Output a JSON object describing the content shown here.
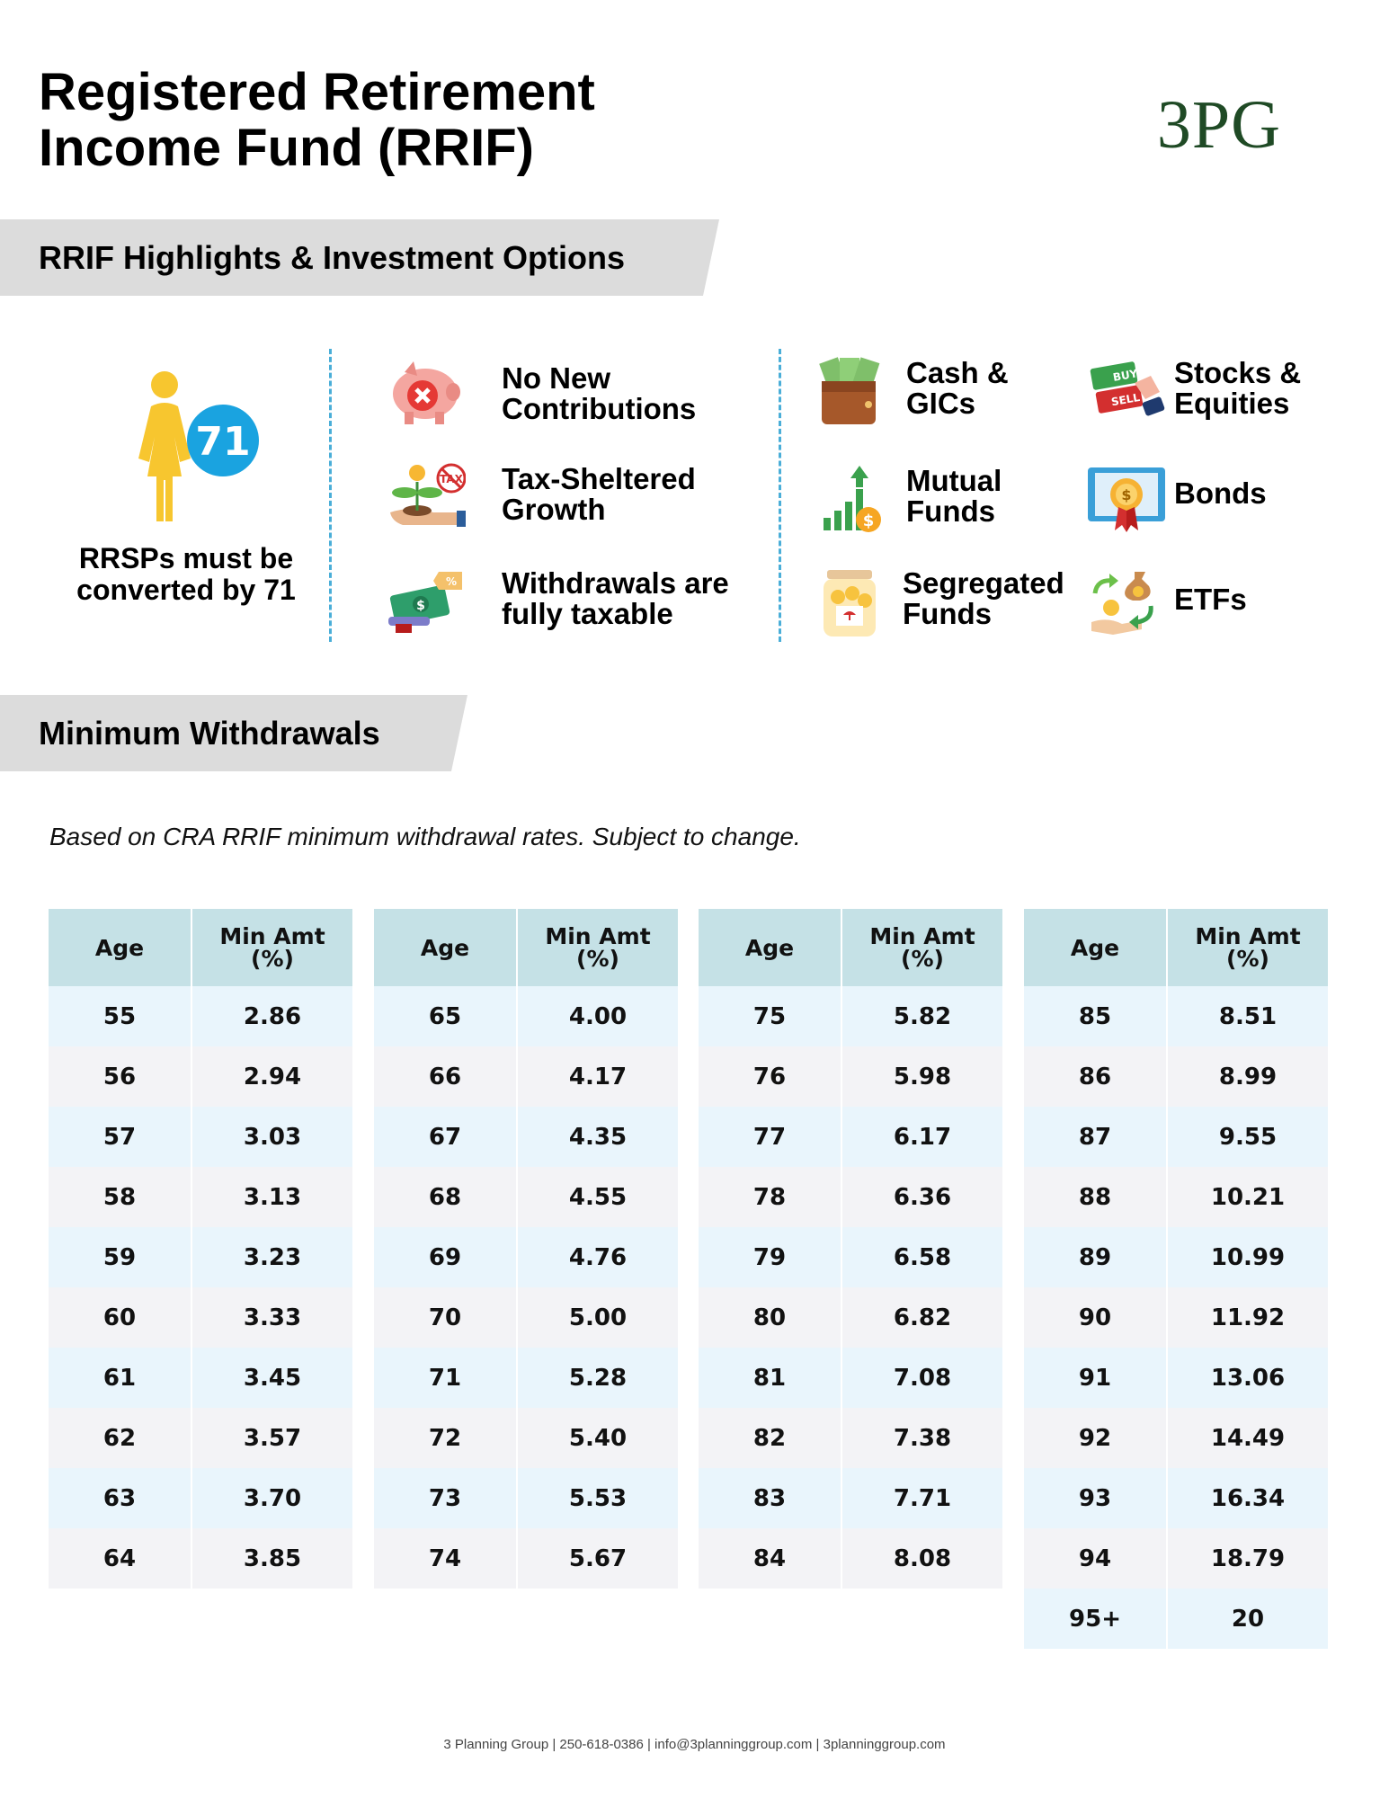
{
  "header": {
    "title_line1": "Registered Retirement",
    "title_line2": "Income Fund (RRIF)",
    "logo_text": "3PG"
  },
  "section1": {
    "title": "RRIF Highlights & Investment Options",
    "age_badge": "71",
    "convert_line1": "RRSPs must be",
    "convert_line2": "converted by 71",
    "highlights": [
      {
        "line1": "No New",
        "line2": "Contributions",
        "icon": "piggy-bank-no-icon"
      },
      {
        "line1": "Tax-Sheltered",
        "line2": "Growth",
        "icon": "plant-no-tax-icon"
      },
      {
        "line1": "Withdrawals are",
        "line2": "fully taxable",
        "icon": "cash-tax-icon"
      }
    ],
    "options": [
      {
        "line1": "Cash &",
        "line2": "GICs",
        "icon": "wallet-cash-icon"
      },
      {
        "line1": "Mutual",
        "line2": "Funds",
        "icon": "growth-chart-icon"
      },
      {
        "line1": "Segregated",
        "line2": "Funds",
        "icon": "coin-jar-icon"
      },
      {
        "line1": "Stocks &",
        "line2": "Equities",
        "icon": "buy-sell-icon"
      },
      {
        "line1": "Bonds",
        "line2": "",
        "icon": "bond-certificate-icon"
      },
      {
        "line1": "ETFs",
        "line2": "",
        "icon": "money-exchange-icon"
      }
    ]
  },
  "section2": {
    "title": "Minimum Withdrawals",
    "note": "Based on CRA RRIF minimum withdrawal rates. Subject to change.",
    "col_age": "Age",
    "col_min_line1": "Min Amt",
    "col_min_line2": "(%)",
    "tables": [
      [
        [
          "55",
          "2.86"
        ],
        [
          "56",
          "2.94"
        ],
        [
          "57",
          "3.03"
        ],
        [
          "58",
          "3.13"
        ],
        [
          "59",
          "3.23"
        ],
        [
          "60",
          "3.33"
        ],
        [
          "61",
          "3.45"
        ],
        [
          "62",
          "3.57"
        ],
        [
          "63",
          "3.70"
        ],
        [
          "64",
          "3.85"
        ]
      ],
      [
        [
          "65",
          "4.00"
        ],
        [
          "66",
          "4.17"
        ],
        [
          "67",
          "4.35"
        ],
        [
          "68",
          "4.55"
        ],
        [
          "69",
          "4.76"
        ],
        [
          "70",
          "5.00"
        ],
        [
          "71",
          "5.28"
        ],
        [
          "72",
          "5.40"
        ],
        [
          "73",
          "5.53"
        ],
        [
          "74",
          "5.67"
        ]
      ],
      [
        [
          "75",
          "5.82"
        ],
        [
          "76",
          "5.98"
        ],
        [
          "77",
          "6.17"
        ],
        [
          "78",
          "6.36"
        ],
        [
          "79",
          "6.58"
        ],
        [
          "80",
          "6.82"
        ],
        [
          "81",
          "7.08"
        ],
        [
          "82",
          "7.38"
        ],
        [
          "83",
          "7.71"
        ],
        [
          "84",
          "8.08"
        ]
      ],
      [
        [
          "85",
          "8.51"
        ],
        [
          "86",
          "8.99"
        ],
        [
          "87",
          "9.55"
        ],
        [
          "88",
          "10.21"
        ],
        [
          "89",
          "10.99"
        ],
        [
          "90",
          "11.92"
        ],
        [
          "91",
          "13.06"
        ],
        [
          "92",
          "14.49"
        ],
        [
          "93",
          "16.34"
        ],
        [
          "94",
          "18.79"
        ],
        [
          "95+",
          "20"
        ]
      ]
    ]
  },
  "footer": {
    "text": "3 Planning Group | 250-618-0386 | info@3planninggroup.com | 3planninggroup.com"
  },
  "colors": {
    "logo_green": "#1f4a25",
    "band_gray": "#dcdcdc",
    "header_teal": "#c5e1e6",
    "row_blue": "#e9f5fc",
    "row_gray": "#f3f3f6",
    "divider_blue": "#4aaed8",
    "badge_blue": "#1aa3e0",
    "person_yellow": "#f7c62f"
  }
}
